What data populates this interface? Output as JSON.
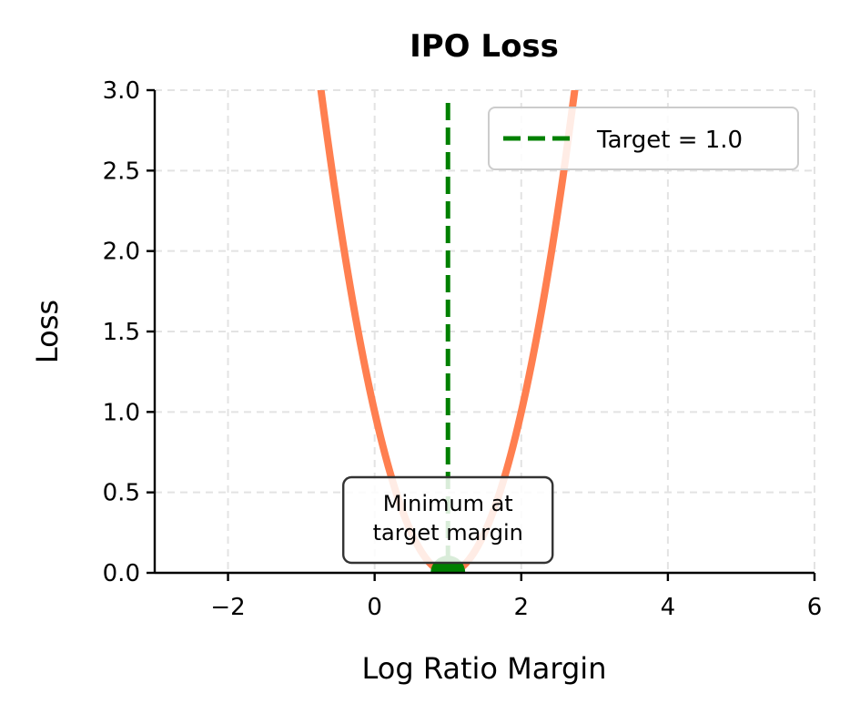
{
  "chart_data": {
    "type": "line",
    "title": "IPO Loss",
    "xlabel": "Log Ratio Margin",
    "ylabel": "Loss",
    "xlim": [
      -3,
      6
    ],
    "ylim": [
      0,
      3
    ],
    "xticks": [
      -2,
      0,
      2,
      4,
      6
    ],
    "xtick_labels": [
      "−2",
      "0",
      "2",
      "4",
      "6"
    ],
    "yticks": [
      0.0,
      0.5,
      1.0,
      1.5,
      2.0,
      2.5,
      3.0
    ],
    "ytick_labels": [
      "0.0",
      "0.5",
      "1.0",
      "1.5",
      "2.0",
      "2.5",
      "3.0"
    ],
    "grid": true,
    "series": [
      {
        "kind": "curve",
        "color": "#ff7f50",
        "x": [
          -0.8,
          -0.6,
          -0.4,
          -0.2,
          0.0,
          0.2,
          0.4,
          0.6,
          0.8,
          1.0,
          1.2,
          1.4,
          1.6,
          1.8,
          2.0,
          2.2,
          2.4,
          2.6,
          2.8
        ],
        "y": [
          3.24,
          2.56,
          1.96,
          1.44,
          1.0,
          0.64,
          0.36,
          0.16,
          0.04,
          0.0,
          0.04,
          0.16,
          0.36,
          0.64,
          1.0,
          1.44,
          1.96,
          2.56,
          3.24
        ]
      }
    ],
    "target_line": {
      "name": "Target = 1.0",
      "x": 1.0,
      "color": "#008000"
    },
    "minimum_point": {
      "x": 1.0,
      "y": 0.0,
      "color": "#008000"
    },
    "annotation": {
      "lines": [
        "Minimum at",
        "target margin"
      ],
      "x": 1.0,
      "y": 0.22
    },
    "legend": {
      "placement": "top-right",
      "entries": [
        "Target = 1.0"
      ]
    }
  }
}
